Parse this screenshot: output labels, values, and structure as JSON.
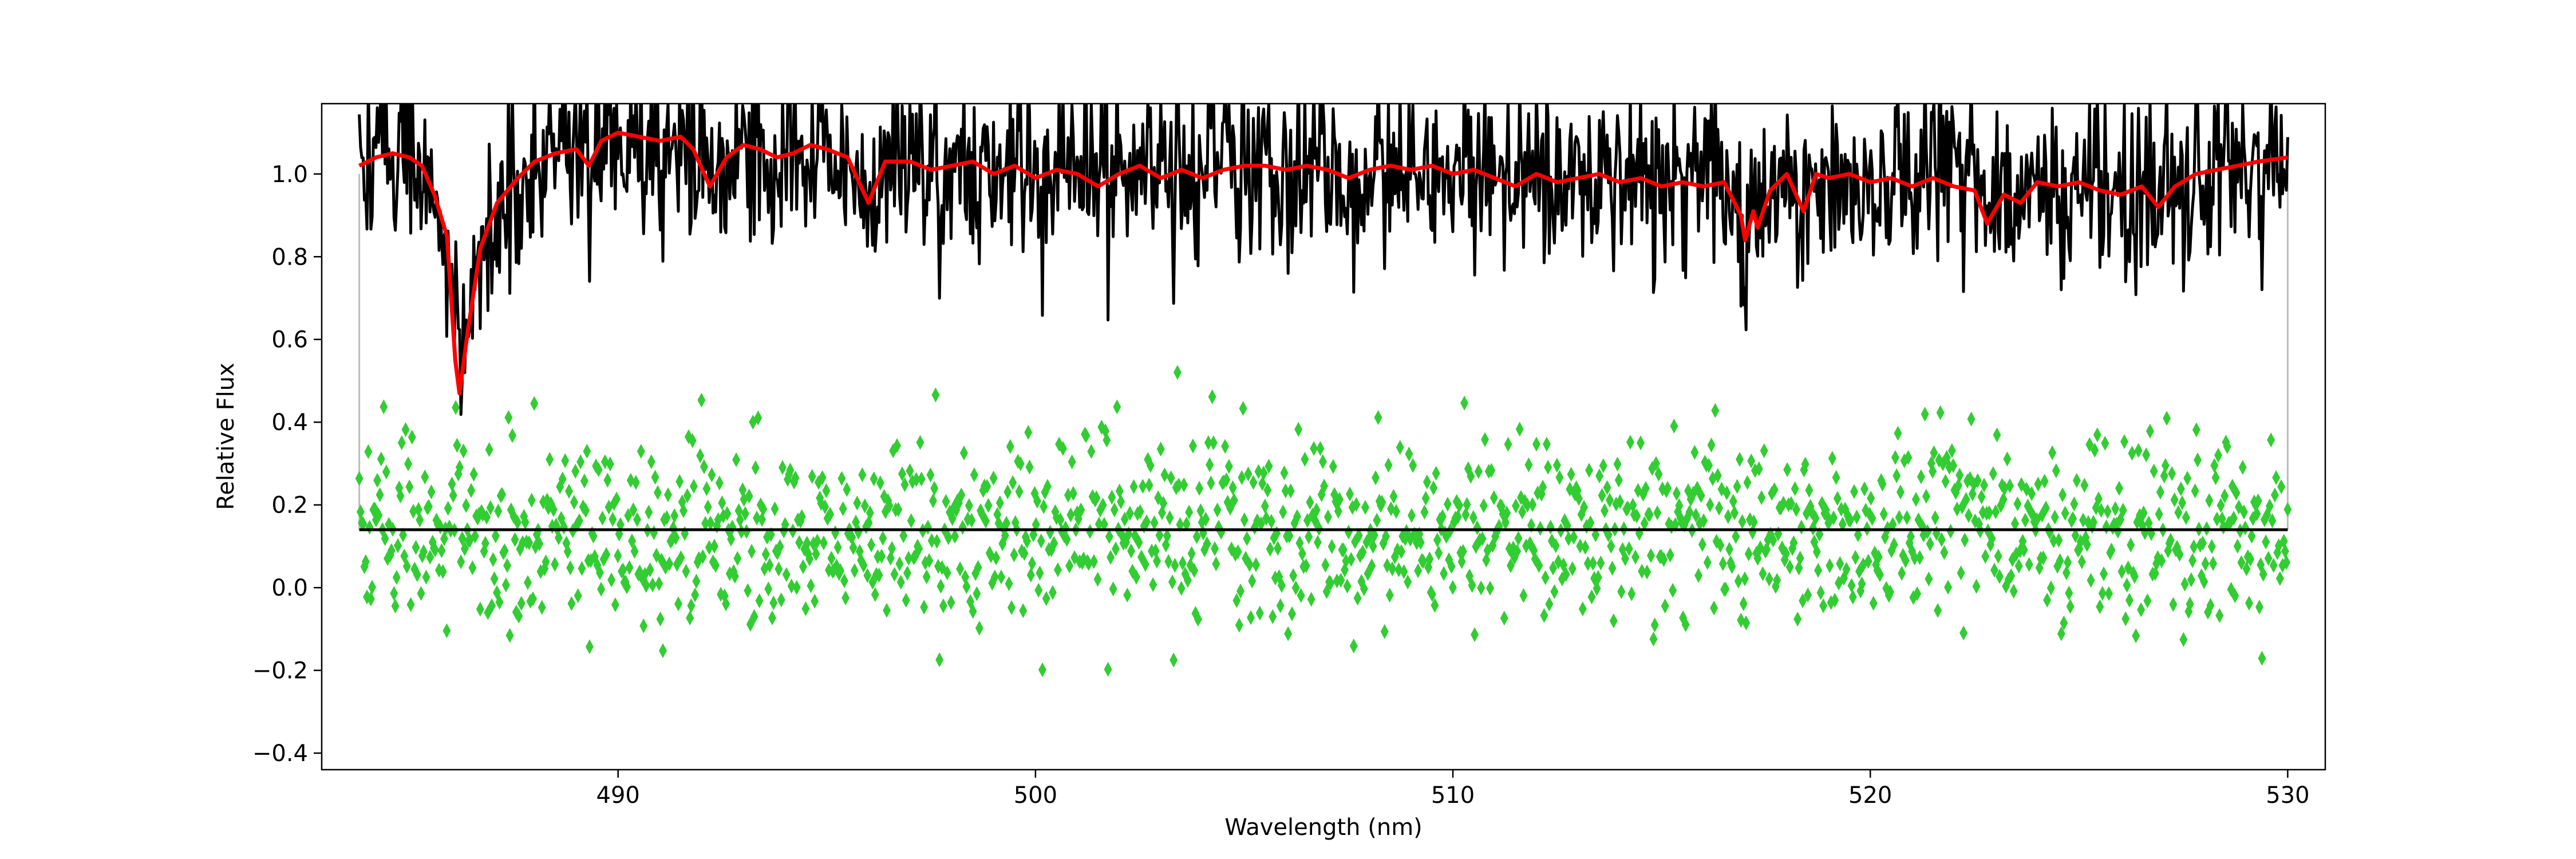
{
  "chart_data": {
    "type": "line",
    "title": "",
    "xlabel": "Wavelength (nm)",
    "ylabel": "Relative Flux",
    "xlim": [
      482.9,
      530.9
    ],
    "ylim": [
      -0.44,
      1.17
    ],
    "xticks": [
      490,
      500,
      510,
      520,
      530
    ],
    "yticks": [
      -0.4,
      -0.2,
      0.0,
      0.2,
      0.4,
      0.6,
      0.8,
      1.0
    ],
    "xtick_labels": [
      "490",
      "500",
      "510",
      "520",
      "530"
    ],
    "ytick_labels": [
      "−0.4",
      "−0.2",
      "0.0",
      "0.2",
      "0.4",
      "0.6",
      "0.8",
      "1.0"
    ],
    "grid": false,
    "wavelength_range": [
      483.8,
      530.0
    ],
    "observed_spectrum": {
      "color": "#000000",
      "continuum": 1.0,
      "noise_sigma": 0.11,
      "absorption_lines": [
        {
          "center": 486.1,
          "depth": 0.55,
          "width": 0.3
        },
        {
          "center": 486.3,
          "depth": 0.3,
          "width": 1.2
        },
        {
          "center": 517.0,
          "depth": 0.12,
          "width": 0.15
        },
        {
          "center": 517.3,
          "depth": 0.14,
          "width": 0.15
        },
        {
          "center": 518.4,
          "depth": 0.1,
          "width": 0.15
        },
        {
          "center": 522.8,
          "depth": 0.1,
          "width": 0.15
        },
        {
          "center": 526.9,
          "depth": 0.08,
          "width": 0.15
        }
      ]
    },
    "model_spectrum": {
      "color": "#ff0000",
      "points": [
        [
          483.8,
          1.02
        ],
        [
          484.2,
          1.04
        ],
        [
          484.6,
          1.05
        ],
        [
          485.0,
          1.04
        ],
        [
          485.3,
          1.02
        ],
        [
          485.6,
          0.95
        ],
        [
          485.9,
          0.85
        ],
        [
          486.1,
          0.55
        ],
        [
          486.2,
          0.47
        ],
        [
          486.4,
          0.62
        ],
        [
          486.7,
          0.82
        ],
        [
          487.1,
          0.93
        ],
        [
          487.6,
          0.99
        ],
        [
          488.0,
          1.03
        ],
        [
          488.5,
          1.05
        ],
        [
          489.0,
          1.06
        ],
        [
          489.3,
          1.02
        ],
        [
          489.6,
          1.08
        ],
        [
          490.0,
          1.1
        ],
        [
          490.5,
          1.09
        ],
        [
          491.0,
          1.08
        ],
        [
          491.5,
          1.09
        ],
        [
          491.8,
          1.06
        ],
        [
          492.2,
          0.97
        ],
        [
          492.6,
          1.04
        ],
        [
          493.0,
          1.07
        ],
        [
          493.4,
          1.06
        ],
        [
          493.8,
          1.04
        ],
        [
          494.2,
          1.05
        ],
        [
          494.6,
          1.07
        ],
        [
          495.0,
          1.06
        ],
        [
          495.5,
          1.04
        ],
        [
          496.0,
          0.93
        ],
        [
          496.4,
          1.03
        ],
        [
          497.0,
          1.03
        ],
        [
          497.5,
          1.01
        ],
        [
          498.0,
          1.02
        ],
        [
          498.5,
          1.03
        ],
        [
          499.0,
          1.0
        ],
        [
          499.5,
          1.02
        ],
        [
          500.0,
          0.99
        ],
        [
          500.5,
          1.01
        ],
        [
          501.0,
          1.0
        ],
        [
          501.5,
          0.97
        ],
        [
          502.0,
          1.0
        ],
        [
          502.5,
          1.02
        ],
        [
          503.0,
          0.99
        ],
        [
          503.5,
          1.01
        ],
        [
          504.0,
          0.99
        ],
        [
          504.5,
          1.01
        ],
        [
          505.0,
          1.02
        ],
        [
          505.5,
          1.02
        ],
        [
          506.0,
          1.01
        ],
        [
          506.5,
          1.02
        ],
        [
          507.0,
          1.01
        ],
        [
          507.5,
          0.99
        ],
        [
          508.0,
          1.01
        ],
        [
          508.5,
          1.02
        ],
        [
          509.0,
          1.01
        ],
        [
          509.5,
          1.02
        ],
        [
          510.0,
          1.0
        ],
        [
          510.5,
          1.01
        ],
        [
          511.0,
          0.99
        ],
        [
          511.5,
          0.97
        ],
        [
          512.0,
          1.0
        ],
        [
          512.5,
          0.98
        ],
        [
          513.0,
          0.99
        ],
        [
          513.5,
          1.0
        ],
        [
          514.0,
          0.98
        ],
        [
          514.5,
          0.99
        ],
        [
          515.0,
          0.97
        ],
        [
          515.5,
          0.98
        ],
        [
          516.0,
          0.97
        ],
        [
          516.5,
          0.98
        ],
        [
          516.9,
          0.9
        ],
        [
          517.0,
          0.84
        ],
        [
          517.2,
          0.91
        ],
        [
          517.3,
          0.87
        ],
        [
          517.6,
          0.96
        ],
        [
          518.0,
          1.0
        ],
        [
          518.4,
          0.91
        ],
        [
          518.7,
          1.0
        ],
        [
          519.0,
          0.99
        ],
        [
          519.5,
          1.0
        ],
        [
          520.0,
          0.98
        ],
        [
          520.5,
          0.99
        ],
        [
          521.0,
          0.97
        ],
        [
          521.5,
          0.99
        ],
        [
          522.0,
          0.97
        ],
        [
          522.5,
          0.96
        ],
        [
          522.8,
          0.88
        ],
        [
          523.2,
          0.95
        ],
        [
          523.6,
          0.93
        ],
        [
          524.0,
          0.98
        ],
        [
          524.5,
          0.97
        ],
        [
          525.0,
          0.98
        ],
        [
          525.5,
          0.96
        ],
        [
          526.0,
          0.95
        ],
        [
          526.5,
          0.97
        ],
        [
          526.9,
          0.92
        ],
        [
          527.3,
          0.97
        ],
        [
          527.8,
          1.0
        ],
        [
          528.3,
          1.01
        ],
        [
          528.8,
          1.02
        ],
        [
          529.3,
          1.03
        ],
        [
          530.0,
          1.04
        ]
      ]
    },
    "residuals": {
      "color": "#32cd32",
      "marker": "thin_diamond",
      "offset": 0.14,
      "sigma": 0.11
    },
    "residual_zero_line": {
      "color": "#000000",
      "y": 0.14,
      "x_range": [
        483.8,
        530.0
      ]
    },
    "boundary_lines": {
      "color": "#bbbbbb",
      "x": [
        483.8,
        530.0
      ]
    }
  }
}
